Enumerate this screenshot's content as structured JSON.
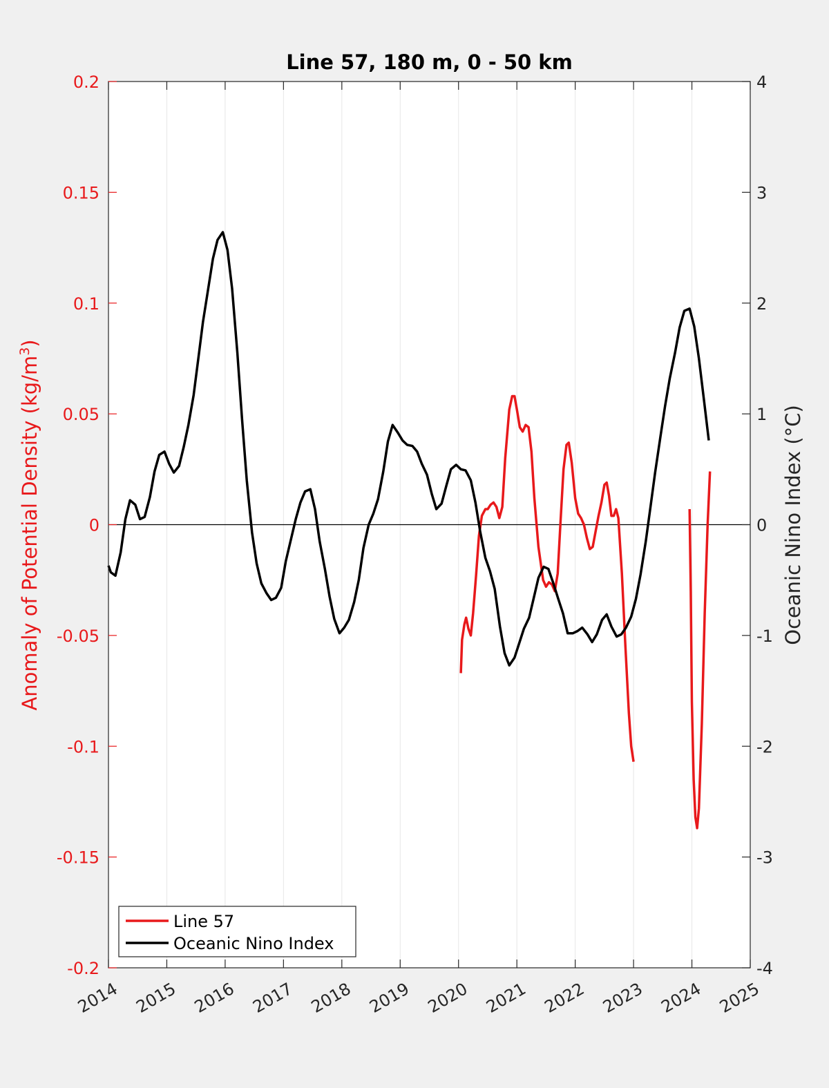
{
  "chart_data": {
    "type": "line",
    "title": "Line 57, 180 m, 0 - 50 km",
    "ylabel_left": "Anomaly of Potential Density (kg/m³)",
    "ylabel_left_parts": {
      "base": "Anomaly of Potential Density (kg/m",
      "sup": "3",
      "close": ")"
    },
    "ylabel_right": "Oceanic Nino Index (°C)",
    "xlim": [
      2014,
      2025
    ],
    "ylim_left": [
      -0.2,
      0.2
    ],
    "ylim_right": [
      -4,
      4
    ],
    "x_ticks": [
      2014,
      2015,
      2016,
      2017,
      2018,
      2019,
      2020,
      2021,
      2022,
      2023,
      2024,
      2025
    ],
    "x_tick_labels": [
      "2014",
      "2015",
      "2016",
      "2017",
      "2018",
      "2019",
      "2020",
      "2021",
      "2022",
      "2023",
      "2024",
      "2025"
    ],
    "y_left_ticks": [
      -0.2,
      -0.15,
      -0.1,
      -0.05,
      0,
      0.05,
      0.1,
      0.15,
      0.2
    ],
    "y_left_tick_labels": [
      "-0.2",
      "-0.15",
      "-0.1",
      "-0.05",
      "0",
      "0.05",
      "0.1",
      "0.15",
      "0.2"
    ],
    "y_right_ticks": [
      -4,
      -3,
      -2,
      -1,
      0,
      1,
      2,
      3,
      4
    ],
    "y_right_tick_labels": [
      "-4",
      "-3",
      "-2",
      "-1",
      "0",
      "1",
      "2",
      "3",
      "4"
    ],
    "grid_x": true,
    "grid_y": false,
    "zero_line": true,
    "legend_position": "bottom-left",
    "colors": {
      "line57": "#e8191b",
      "oni": "#000000",
      "left_axis": "#e8191b",
      "right_axis": "#262626",
      "background": "#f0f0f0",
      "plot_bg": "#ffffff"
    },
    "series": [
      {
        "name": "Line 57",
        "axis": "left",
        "segments": [
          [
            [
              2020.04,
              -0.067
            ],
            [
              2020.06,
              -0.052
            ],
            [
              2020.1,
              -0.045
            ],
            [
              2020.13,
              -0.042
            ],
            [
              2020.17,
              -0.047
            ],
            [
              2020.21,
              -0.05
            ],
            [
              2020.25,
              -0.04
            ],
            [
              2020.3,
              -0.023
            ],
            [
              2020.35,
              -0.005
            ],
            [
              2020.4,
              0.004
            ],
            [
              2020.46,
              0.007
            ],
            [
              2020.5,
              0.007
            ],
            [
              2020.55,
              0.009
            ],
            [
              2020.6,
              0.01
            ],
            [
              2020.65,
              0.008
            ],
            [
              2020.7,
              0.003
            ],
            [
              2020.75,
              0.008
            ],
            [
              2020.8,
              0.03
            ],
            [
              2020.87,
              0.052
            ],
            [
              2020.92,
              0.058
            ],
            [
              2020.96,
              0.058
            ],
            [
              2021.0,
              0.052
            ],
            [
              2021.05,
              0.044
            ],
            [
              2021.1,
              0.042
            ],
            [
              2021.15,
              0.045
            ],
            [
              2021.2,
              0.044
            ],
            [
              2021.25,
              0.033
            ],
            [
              2021.3,
              0.012
            ],
            [
              2021.37,
              -0.01
            ],
            [
              2021.45,
              -0.025
            ],
            [
              2021.5,
              -0.028
            ],
            [
              2021.55,
              -0.026
            ],
            [
              2021.6,
              -0.027
            ],
            [
              2021.65,
              -0.03
            ],
            [
              2021.7,
              -0.022
            ],
            [
              2021.75,
              0.002
            ],
            [
              2021.8,
              0.025
            ],
            [
              2021.85,
              0.036
            ],
            [
              2021.89,
              0.037
            ],
            [
              2021.94,
              0.028
            ],
            [
              2022.0,
              0.012
            ],
            [
              2022.05,
              0.005
            ],
            [
              2022.1,
              0.003
            ],
            [
              2022.15,
              0.0
            ],
            [
              2022.2,
              -0.006
            ],
            [
              2022.25,
              -0.011
            ],
            [
              2022.3,
              -0.01
            ],
            [
              2022.35,
              -0.003
            ],
            [
              2022.4,
              0.004
            ],
            [
              2022.45,
              0.01
            ],
            [
              2022.5,
              0.018
            ],
            [
              2022.54,
              0.019
            ],
            [
              2022.58,
              0.013
            ],
            [
              2022.62,
              0.004
            ],
            [
              2022.66,
              0.004
            ],
            [
              2022.7,
              0.007
            ],
            [
              2022.74,
              0.003
            ],
            [
              2022.8,
              -0.022
            ],
            [
              2022.86,
              -0.055
            ],
            [
              2022.92,
              -0.085
            ],
            [
              2022.96,
              -0.1
            ],
            [
              2023.0,
              -0.107
            ]
          ],
          [
            [
              2023.96,
              0.007
            ],
            [
              2023.98,
              -0.03
            ],
            [
              2024.0,
              -0.08
            ],
            [
              2024.03,
              -0.115
            ],
            [
              2024.06,
              -0.132
            ],
            [
              2024.09,
              -0.137
            ],
            [
              2024.12,
              -0.128
            ],
            [
              2024.17,
              -0.09
            ],
            [
              2024.22,
              -0.04
            ],
            [
              2024.27,
              0.0
            ],
            [
              2024.31,
              0.024
            ]
          ]
        ]
      },
      {
        "name": "Oceanic Nino Index",
        "axis": "right",
        "segments": [
          [
            [
              2014.0,
              -0.37
            ],
            [
              2014.04,
              -0.43
            ],
            [
              2014.12,
              -0.46
            ],
            [
              2014.21,
              -0.25
            ],
            [
              2014.29,
              0.05
            ],
            [
              2014.37,
              0.22
            ],
            [
              2014.46,
              0.18
            ],
            [
              2014.54,
              0.05
            ],
            [
              2014.62,
              0.07
            ],
            [
              2014.71,
              0.25
            ],
            [
              2014.79,
              0.48
            ],
            [
              2014.87,
              0.63
            ],
            [
              2014.96,
              0.66
            ],
            [
              2015.04,
              0.55
            ],
            [
              2015.12,
              0.47
            ],
            [
              2015.21,
              0.53
            ],
            [
              2015.29,
              0.7
            ],
            [
              2015.37,
              0.9
            ],
            [
              2015.46,
              1.17
            ],
            [
              2015.54,
              1.5
            ],
            [
              2015.62,
              1.83
            ],
            [
              2015.71,
              2.13
            ],
            [
              2015.79,
              2.4
            ],
            [
              2015.87,
              2.57
            ],
            [
              2015.96,
              2.64
            ],
            [
              2016.04,
              2.48
            ],
            [
              2016.12,
              2.13
            ],
            [
              2016.21,
              1.55
            ],
            [
              2016.29,
              0.95
            ],
            [
              2016.37,
              0.4
            ],
            [
              2016.46,
              -0.07
            ],
            [
              2016.54,
              -0.35
            ],
            [
              2016.62,
              -0.53
            ],
            [
              2016.71,
              -0.62
            ],
            [
              2016.79,
              -0.68
            ],
            [
              2016.87,
              -0.66
            ],
            [
              2016.96,
              -0.57
            ],
            [
              2017.04,
              -0.33
            ],
            [
              2017.12,
              -0.15
            ],
            [
              2017.21,
              0.05
            ],
            [
              2017.29,
              0.2
            ],
            [
              2017.37,
              0.3
            ],
            [
              2017.46,
              0.32
            ],
            [
              2017.54,
              0.14
            ],
            [
              2017.62,
              -0.15
            ],
            [
              2017.71,
              -0.4
            ],
            [
              2017.79,
              -0.65
            ],
            [
              2017.87,
              -0.85
            ],
            [
              2017.96,
              -0.98
            ],
            [
              2018.04,
              -0.93
            ],
            [
              2018.12,
              -0.86
            ],
            [
              2018.21,
              -0.7
            ],
            [
              2018.29,
              -0.5
            ],
            [
              2018.37,
              -0.21
            ],
            [
              2018.46,
              0.0
            ],
            [
              2018.54,
              0.1
            ],
            [
              2018.62,
              0.23
            ],
            [
              2018.71,
              0.48
            ],
            [
              2018.79,
              0.75
            ],
            [
              2018.87,
              0.9
            ],
            [
              2018.96,
              0.83
            ],
            [
              2019.04,
              0.76
            ],
            [
              2019.12,
              0.72
            ],
            [
              2019.21,
              0.71
            ],
            [
              2019.29,
              0.66
            ],
            [
              2019.37,
              0.55
            ],
            [
              2019.46,
              0.45
            ],
            [
              2019.54,
              0.28
            ],
            [
              2019.62,
              0.14
            ],
            [
              2019.71,
              0.19
            ],
            [
              2019.79,
              0.35
            ],
            [
              2019.87,
              0.5
            ],
            [
              2019.96,
              0.54
            ],
            [
              2020.04,
              0.5
            ],
            [
              2020.12,
              0.49
            ],
            [
              2020.21,
              0.4
            ],
            [
              2020.29,
              0.2
            ],
            [
              2020.37,
              -0.06
            ],
            [
              2020.46,
              -0.3
            ],
            [
              2020.54,
              -0.42
            ],
            [
              2020.62,
              -0.58
            ],
            [
              2020.71,
              -0.92
            ],
            [
              2020.79,
              -1.16
            ],
            [
              2020.87,
              -1.27
            ],
            [
              2020.96,
              -1.2
            ],
            [
              2021.04,
              -1.07
            ],
            [
              2021.12,
              -0.94
            ],
            [
              2021.21,
              -0.84
            ],
            [
              2021.29,
              -0.66
            ],
            [
              2021.37,
              -0.48
            ],
            [
              2021.46,
              -0.38
            ],
            [
              2021.54,
              -0.4
            ],
            [
              2021.62,
              -0.52
            ],
            [
              2021.71,
              -0.67
            ],
            [
              2021.79,
              -0.8
            ],
            [
              2021.87,
              -0.98
            ],
            [
              2021.96,
              -0.98
            ],
            [
              2022.04,
              -0.96
            ],
            [
              2022.12,
              -0.93
            ],
            [
              2022.21,
              -0.99
            ],
            [
              2022.29,
              -1.06
            ],
            [
              2022.37,
              -0.99
            ],
            [
              2022.46,
              -0.86
            ],
            [
              2022.54,
              -0.81
            ],
            [
              2022.62,
              -0.92
            ],
            [
              2022.71,
              -1.01
            ],
            [
              2022.79,
              -0.99
            ],
            [
              2022.87,
              -0.93
            ],
            [
              2022.96,
              -0.83
            ],
            [
              2023.04,
              -0.67
            ],
            [
              2023.12,
              -0.45
            ],
            [
              2023.21,
              -0.15
            ],
            [
              2023.29,
              0.16
            ],
            [
              2023.37,
              0.47
            ],
            [
              2023.46,
              0.79
            ],
            [
              2023.54,
              1.07
            ],
            [
              2023.62,
              1.32
            ],
            [
              2023.71,
              1.55
            ],
            [
              2023.79,
              1.78
            ],
            [
              2023.87,
              1.93
            ],
            [
              2023.96,
              1.95
            ],
            [
              2024.04,
              1.79
            ],
            [
              2024.12,
              1.5
            ],
            [
              2024.21,
              1.11
            ],
            [
              2024.29,
              0.76
            ]
          ]
        ]
      }
    ]
  }
}
